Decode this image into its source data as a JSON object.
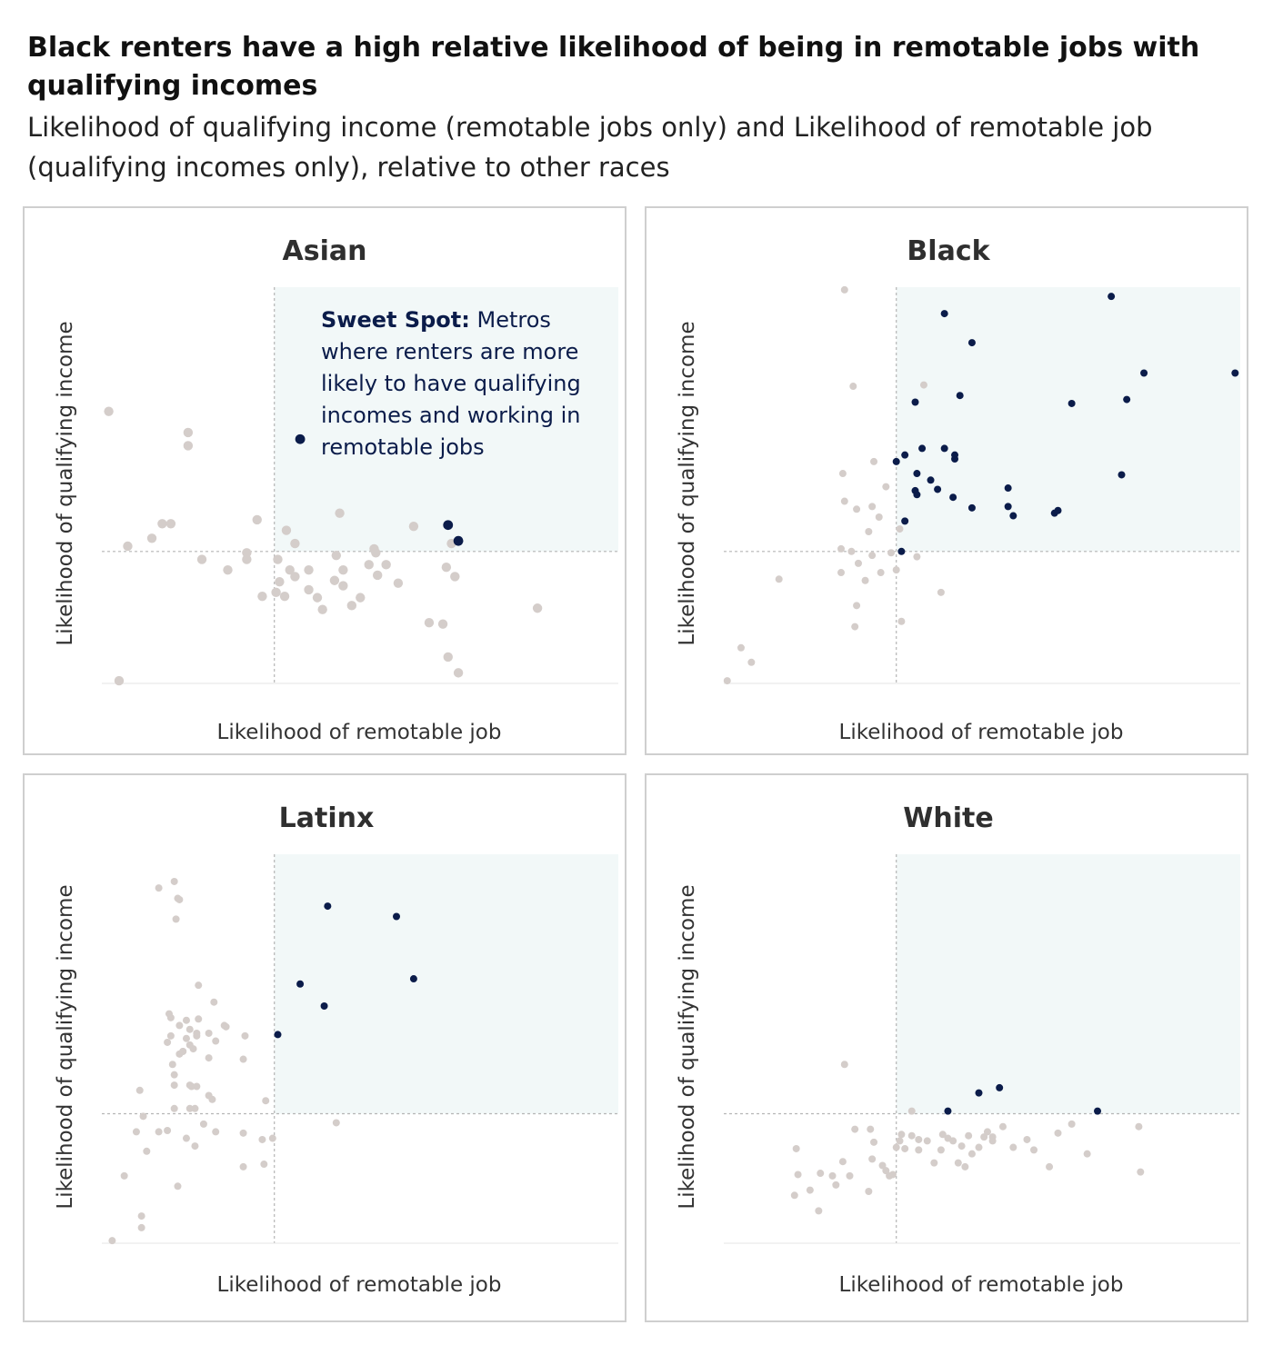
{
  "title": "Black renters have a high relative likelihood of being in remotable jobs with qualifying incomes",
  "subtitle": "Likelihood of qualifying income (remotable jobs only) and Likelihood of remotable job (qualifying incomes only), relative to other races",
  "annotation": {
    "label": "Sweet Spot:",
    "text": " Metros where renters are more likely to have qualifying incomes and working in remotable jobs"
  },
  "colors": {
    "highlight": "#0b1c4a",
    "other": "#d4cdca",
    "sweet_spot_fill": "#f2f8f8",
    "reference_line": "#b5b5b5"
  },
  "chart_data": [
    {
      "type": "scatter",
      "title": "Asian",
      "xlabel": "Likelihood of remotable job",
      "ylabel": "Likelihood of qualifying income",
      "xlim": [
        0,
        3
      ],
      "ylim": [
        0,
        3
      ],
      "reference": {
        "x": 1,
        "y": 1
      },
      "grid": false,
      "points": [
        [
          1.15,
          1.85
        ],
        [
          2.01,
          0.2
        ],
        [
          2.07,
          0.08
        ],
        [
          0.29,
          1.1
        ],
        [
          0.04,
          2.06
        ],
        [
          0.1,
          0.02
        ],
        [
          0.15,
          1.04
        ],
        [
          0.5,
          1.8
        ],
        [
          0.5,
          1.9
        ],
        [
          0.35,
          1.21
        ],
        [
          0.4,
          1.21
        ],
        [
          0.84,
          0.94
        ],
        [
          0.93,
          0.66
        ],
        [
          0.73,
          0.86
        ],
        [
          0.58,
          0.94
        ],
        [
          1.06,
          0.66
        ],
        [
          1.12,
          0.81
        ],
        [
          1.09,
          0.86
        ],
        [
          1.2,
          0.86
        ],
        [
          1.25,
          0.65
        ],
        [
          1.5,
          0.65
        ],
        [
          1.4,
          0.86
        ],
        [
          1.55,
          0.9
        ],
        [
          1.35,
          0.78
        ],
        [
          1.6,
          0.82
        ],
        [
          1.65,
          0.9
        ],
        [
          1.72,
          0.76
        ],
        [
          1.36,
          0.97
        ],
        [
          1.4,
          0.74
        ],
        [
          1.45,
          0.59
        ],
        [
          1.38,
          1.29
        ],
        [
          1.9,
          0.46
        ],
        [
          2.05,
          0.81
        ],
        [
          2.53,
          0.57
        ],
        [
          2.0,
          0.88
        ],
        [
          1.01,
          0.69
        ],
        [
          0.9,
          1.24
        ],
        [
          1.03,
          0.77
        ],
        [
          1.12,
          1.06
        ],
        [
          1.2,
          0.71
        ],
        [
          1.28,
          0.56
        ],
        [
          2.03,
          1.06
        ],
        [
          1.07,
          1.16
        ],
        [
          1.02,
          0.94
        ],
        [
          1.59,
          0.99
        ],
        [
          0.84,
          0.99
        ],
        [
          1.58,
          1.02
        ],
        [
          1.81,
          1.19
        ],
        [
          1.98,
          0.45
        ]
      ],
      "highlight": [
        [
          1.15,
          1.85
        ],
        [
          2.01,
          1.2
        ],
        [
          2.07,
          1.08
        ]
      ]
    },
    {
      "type": "scatter",
      "title": "Black",
      "xlabel": "Likelihood of remotable job",
      "ylabel": "Likelihood of qualifying income",
      "xlim": [
        0,
        3
      ],
      "ylim": [
        0,
        3
      ],
      "reference": {
        "x": 1,
        "y": 1
      },
      "grid": false,
      "points": [
        [
          0.02,
          0.02
        ],
        [
          0.1,
          0.27
        ],
        [
          0.16,
          0.16
        ],
        [
          0.32,
          0.79
        ],
        [
          0.68,
          1.02
        ],
        [
          0.69,
          1.59
        ],
        [
          0.68,
          0.84
        ],
        [
          0.7,
          1.38
        ],
        [
          0.78,
          0.91
        ],
        [
          0.76,
          0.43
        ],
        [
          0.82,
          0.78
        ],
        [
          0.86,
          0.97
        ],
        [
          0.77,
          0.59
        ],
        [
          0.77,
          1.32
        ],
        [
          0.84,
          1.15
        ],
        [
          0.86,
          1.34
        ],
        [
          0.9,
          1.26
        ],
        [
          0.91,
          0.84
        ],
        [
          0.94,
          1.49
        ],
        [
          0.97,
          0.99
        ],
        [
          1.0,
          0.86
        ],
        [
          1.02,
          1.17
        ],
        [
          1.12,
          0.96
        ],
        [
          1.16,
          2.26
        ],
        [
          1.03,
          0.47
        ],
        [
          1.26,
          0.69
        ],
        [
          0.75,
          2.25
        ],
        [
          0.7,
          2.98
        ],
        [
          0.87,
          1.68
        ],
        [
          0.74,
          1.0
        ]
      ],
      "highlight": [
        [
          1.28,
          2.8
        ],
        [
          1.44,
          2.58
        ],
        [
          1.11,
          2.13
        ],
        [
          1.37,
          2.18
        ],
        [
          1.15,
          1.78
        ],
        [
          1.05,
          1.73
        ],
        [
          1.0,
          1.68
        ],
        [
          1.28,
          1.78
        ],
        [
          1.34,
          1.7
        ],
        [
          1.34,
          1.73
        ],
        [
          1.12,
          1.59
        ],
        [
          1.2,
          1.54
        ],
        [
          1.24,
          1.47
        ],
        [
          1.12,
          1.43
        ],
        [
          1.44,
          1.33
        ],
        [
          1.65,
          1.48
        ],
        [
          1.33,
          1.41
        ],
        [
          1.65,
          1.34
        ],
        [
          1.68,
          1.27
        ],
        [
          1.94,
          1.31
        ],
        [
          1.92,
          1.29
        ],
        [
          2.02,
          2.12
        ],
        [
          2.34,
          2.15
        ],
        [
          2.31,
          1.58
        ],
        [
          2.44,
          2.35
        ],
        [
          2.25,
          2.93
        ],
        [
          2.97,
          2.35
        ],
        [
          1.11,
          1.46
        ],
        [
          1.03,
          1.0
        ],
        [
          1.05,
          1.23
        ]
      ]
    },
    {
      "type": "scatter",
      "title": "Latinx",
      "xlabel": "Likelihood of remotable job",
      "ylabel": "Likelihood of qualifying income",
      "xlim": [
        0,
        3
      ],
      "ylim": [
        0,
        3
      ],
      "reference": {
        "x": 1,
        "y": 1
      },
      "grid": false,
      "points": [
        [
          0.06,
          0.02
        ],
        [
          0.23,
          0.12
        ],
        [
          0.23,
          0.21
        ],
        [
          0.13,
          0.52
        ],
        [
          0.44,
          0.44
        ],
        [
          0.26,
          0.71
        ],
        [
          0.2,
          0.86
        ],
        [
          0.24,
          0.98
        ],
        [
          0.38,
          0.87
        ],
        [
          0.33,
          0.86
        ],
        [
          0.49,
          0.81
        ],
        [
          0.59,
          0.92
        ],
        [
          0.66,
          0.86
        ],
        [
          0.54,
          0.75
        ],
        [
          0.82,
          0.85
        ],
        [
          0.94,
          0.61
        ],
        [
          0.93,
          0.8
        ],
        [
          0.99,
          0.81
        ],
        [
          0.82,
          0.59
        ],
        [
          0.95,
          1.1
        ],
        [
          1.36,
          0.93
        ],
        [
          0.22,
          1.18
        ],
        [
          0.42,
          1.04
        ],
        [
          0.51,
          1.04
        ],
        [
          0.54,
          1.04
        ],
        [
          0.62,
          1.14
        ],
        [
          0.55,
          1.21
        ],
        [
          0.52,
          1.21
        ],
        [
          0.64,
          1.11
        ],
        [
          0.42,
          1.3
        ],
        [
          0.41,
          1.38
        ],
        [
          0.4,
          1.6
        ],
        [
          0.45,
          1.46
        ],
        [
          0.47,
          1.48
        ],
        [
          0.53,
          1.5
        ],
        [
          0.55,
          1.6
        ],
        [
          0.62,
          1.62
        ],
        [
          0.66,
          1.56
        ],
        [
          0.62,
          1.43
        ],
        [
          0.83,
          1.6
        ],
        [
          0.82,
          1.42
        ],
        [
          0.39,
          1.77
        ],
        [
          0.49,
          1.58
        ],
        [
          0.51,
          1.65
        ],
        [
          0.38,
          1.55
        ],
        [
          0.42,
          1.22
        ],
        [
          0.45,
          1.68
        ],
        [
          0.4,
          1.74
        ],
        [
          0.56,
          1.73
        ],
        [
          0.51,
          1.53
        ],
        [
          0.65,
          1.86
        ],
        [
          0.43,
          2.5
        ],
        [
          0.44,
          2.66
        ],
        [
          0.33,
          2.74
        ],
        [
          0.56,
          1.99
        ],
        [
          0.55,
          1.62
        ],
        [
          0.72,
          1.67
        ],
        [
          0.71,
          1.68
        ],
        [
          0.51,
          1.22
        ],
        [
          0.42,
          2.79
        ],
        [
          0.45,
          2.65
        ],
        [
          0.49,
          1.72
        ],
        [
          0.47,
          1.48
        ]
      ],
      "highlight": [
        [
          1.31,
          2.6
        ],
        [
          1.71,
          2.52
        ],
        [
          1.81,
          2.04
        ],
        [
          1.15,
          2.0
        ],
        [
          1.29,
          1.83
        ],
        [
          1.02,
          1.61
        ]
      ]
    },
    {
      "type": "scatter",
      "title": "White",
      "xlabel": "Likelihood of remotable job",
      "ylabel": "Likelihood of qualifying income",
      "xlim": [
        0,
        3
      ],
      "ylim": [
        0,
        3
      ],
      "reference": {
        "x": 1,
        "y": 1
      },
      "grid": false,
      "points": [
        [
          0.42,
          0.73
        ],
        [
          0.5,
          0.41
        ],
        [
          0.56,
          0.54
        ],
        [
          0.63,
          0.52
        ],
        [
          0.65,
          0.45
        ],
        [
          0.69,
          0.63
        ],
        [
          0.73,
          0.52
        ],
        [
          0.84,
          0.4
        ],
        [
          0.86,
          0.65
        ],
        [
          0.85,
          0.88
        ],
        [
          0.96,
          0.52
        ],
        [
          0.98,
          0.53
        ],
        [
          1.0,
          0.74
        ],
        [
          1.02,
          0.79
        ],
        [
          1.05,
          0.73
        ],
        [
          1.09,
          0.83
        ],
        [
          1.13,
          0.8
        ],
        [
          1.18,
          0.79
        ],
        [
          1.22,
          0.62
        ],
        [
          1.26,
          0.72
        ],
        [
          1.27,
          0.84
        ],
        [
          1.3,
          0.81
        ],
        [
          1.36,
          0.62
        ],
        [
          1.4,
          0.59
        ],
        [
          1.42,
          0.83
        ],
        [
          1.44,
          0.69
        ],
        [
          1.48,
          0.74
        ],
        [
          1.53,
          0.86
        ],
        [
          1.56,
          0.79
        ],
        [
          1.62,
          0.9
        ],
        [
          1.68,
          0.74
        ],
        [
          1.76,
          0.8
        ],
        [
          1.8,
          0.72
        ],
        [
          1.89,
          0.59
        ],
        [
          1.94,
          0.85
        ],
        [
          2.02,
          0.92
        ],
        [
          2.11,
          0.69
        ],
        [
          2.41,
          0.9
        ],
        [
          2.42,
          0.55
        ],
        [
          0.41,
          0.37
        ],
        [
          0.43,
          0.53
        ],
        [
          0.7,
          1.38
        ],
        [
          0.87,
          0.78
        ],
        [
          0.94,
          0.56
        ],
        [
          1.33,
          0.79
        ],
        [
          1.38,
          0.75
        ],
        [
          1.51,
          0.82
        ],
        [
          1.56,
          0.82
        ],
        [
          1.13,
          0.72
        ],
        [
          1.03,
          0.84
        ],
        [
          0.55,
          0.25
        ],
        [
          0.76,
          0.88
        ],
        [
          0.92,
          0.6
        ],
        [
          1.09,
          1.02
        ]
      ],
      "highlight": [
        [
          1.3,
          1.02
        ],
        [
          1.48,
          1.16
        ],
        [
          1.6,
          1.2
        ],
        [
          2.17,
          1.02
        ]
      ]
    }
  ]
}
